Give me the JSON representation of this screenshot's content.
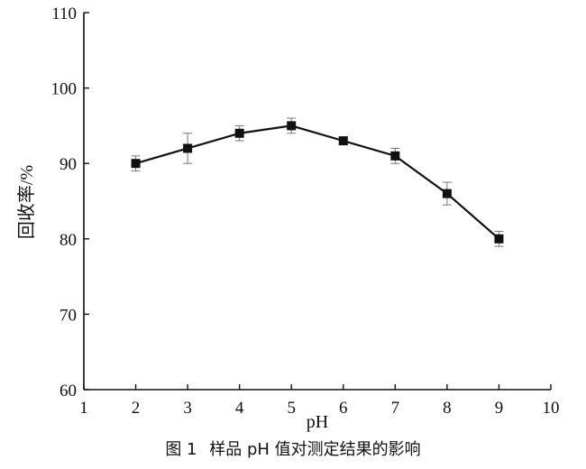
{
  "chart_data": {
    "type": "line",
    "xlabel": "pH",
    "ylabel": "回收率/%",
    "xlim": [
      1,
      10
    ],
    "ylim": [
      60,
      110
    ],
    "x_ticks": [
      "1",
      "2",
      "3",
      "4",
      "5",
      "6",
      "7",
      "8",
      "9",
      "10"
    ],
    "y_ticks": [
      "60",
      "70",
      "80",
      "90",
      "100",
      "110"
    ],
    "grid": false,
    "series": [
      {
        "x": [
          2,
          3,
          4,
          5,
          6,
          7,
          8,
          9
        ],
        "y": [
          90,
          92,
          94,
          95,
          93,
          91,
          86,
          80
        ],
        "error": [
          1,
          2,
          1,
          1,
          0.5,
          1,
          1.5,
          1
        ]
      }
    ]
  },
  "caption": {
    "figure_label": "图 1",
    "text": "样品 pH 值对测定结果的影响"
  }
}
